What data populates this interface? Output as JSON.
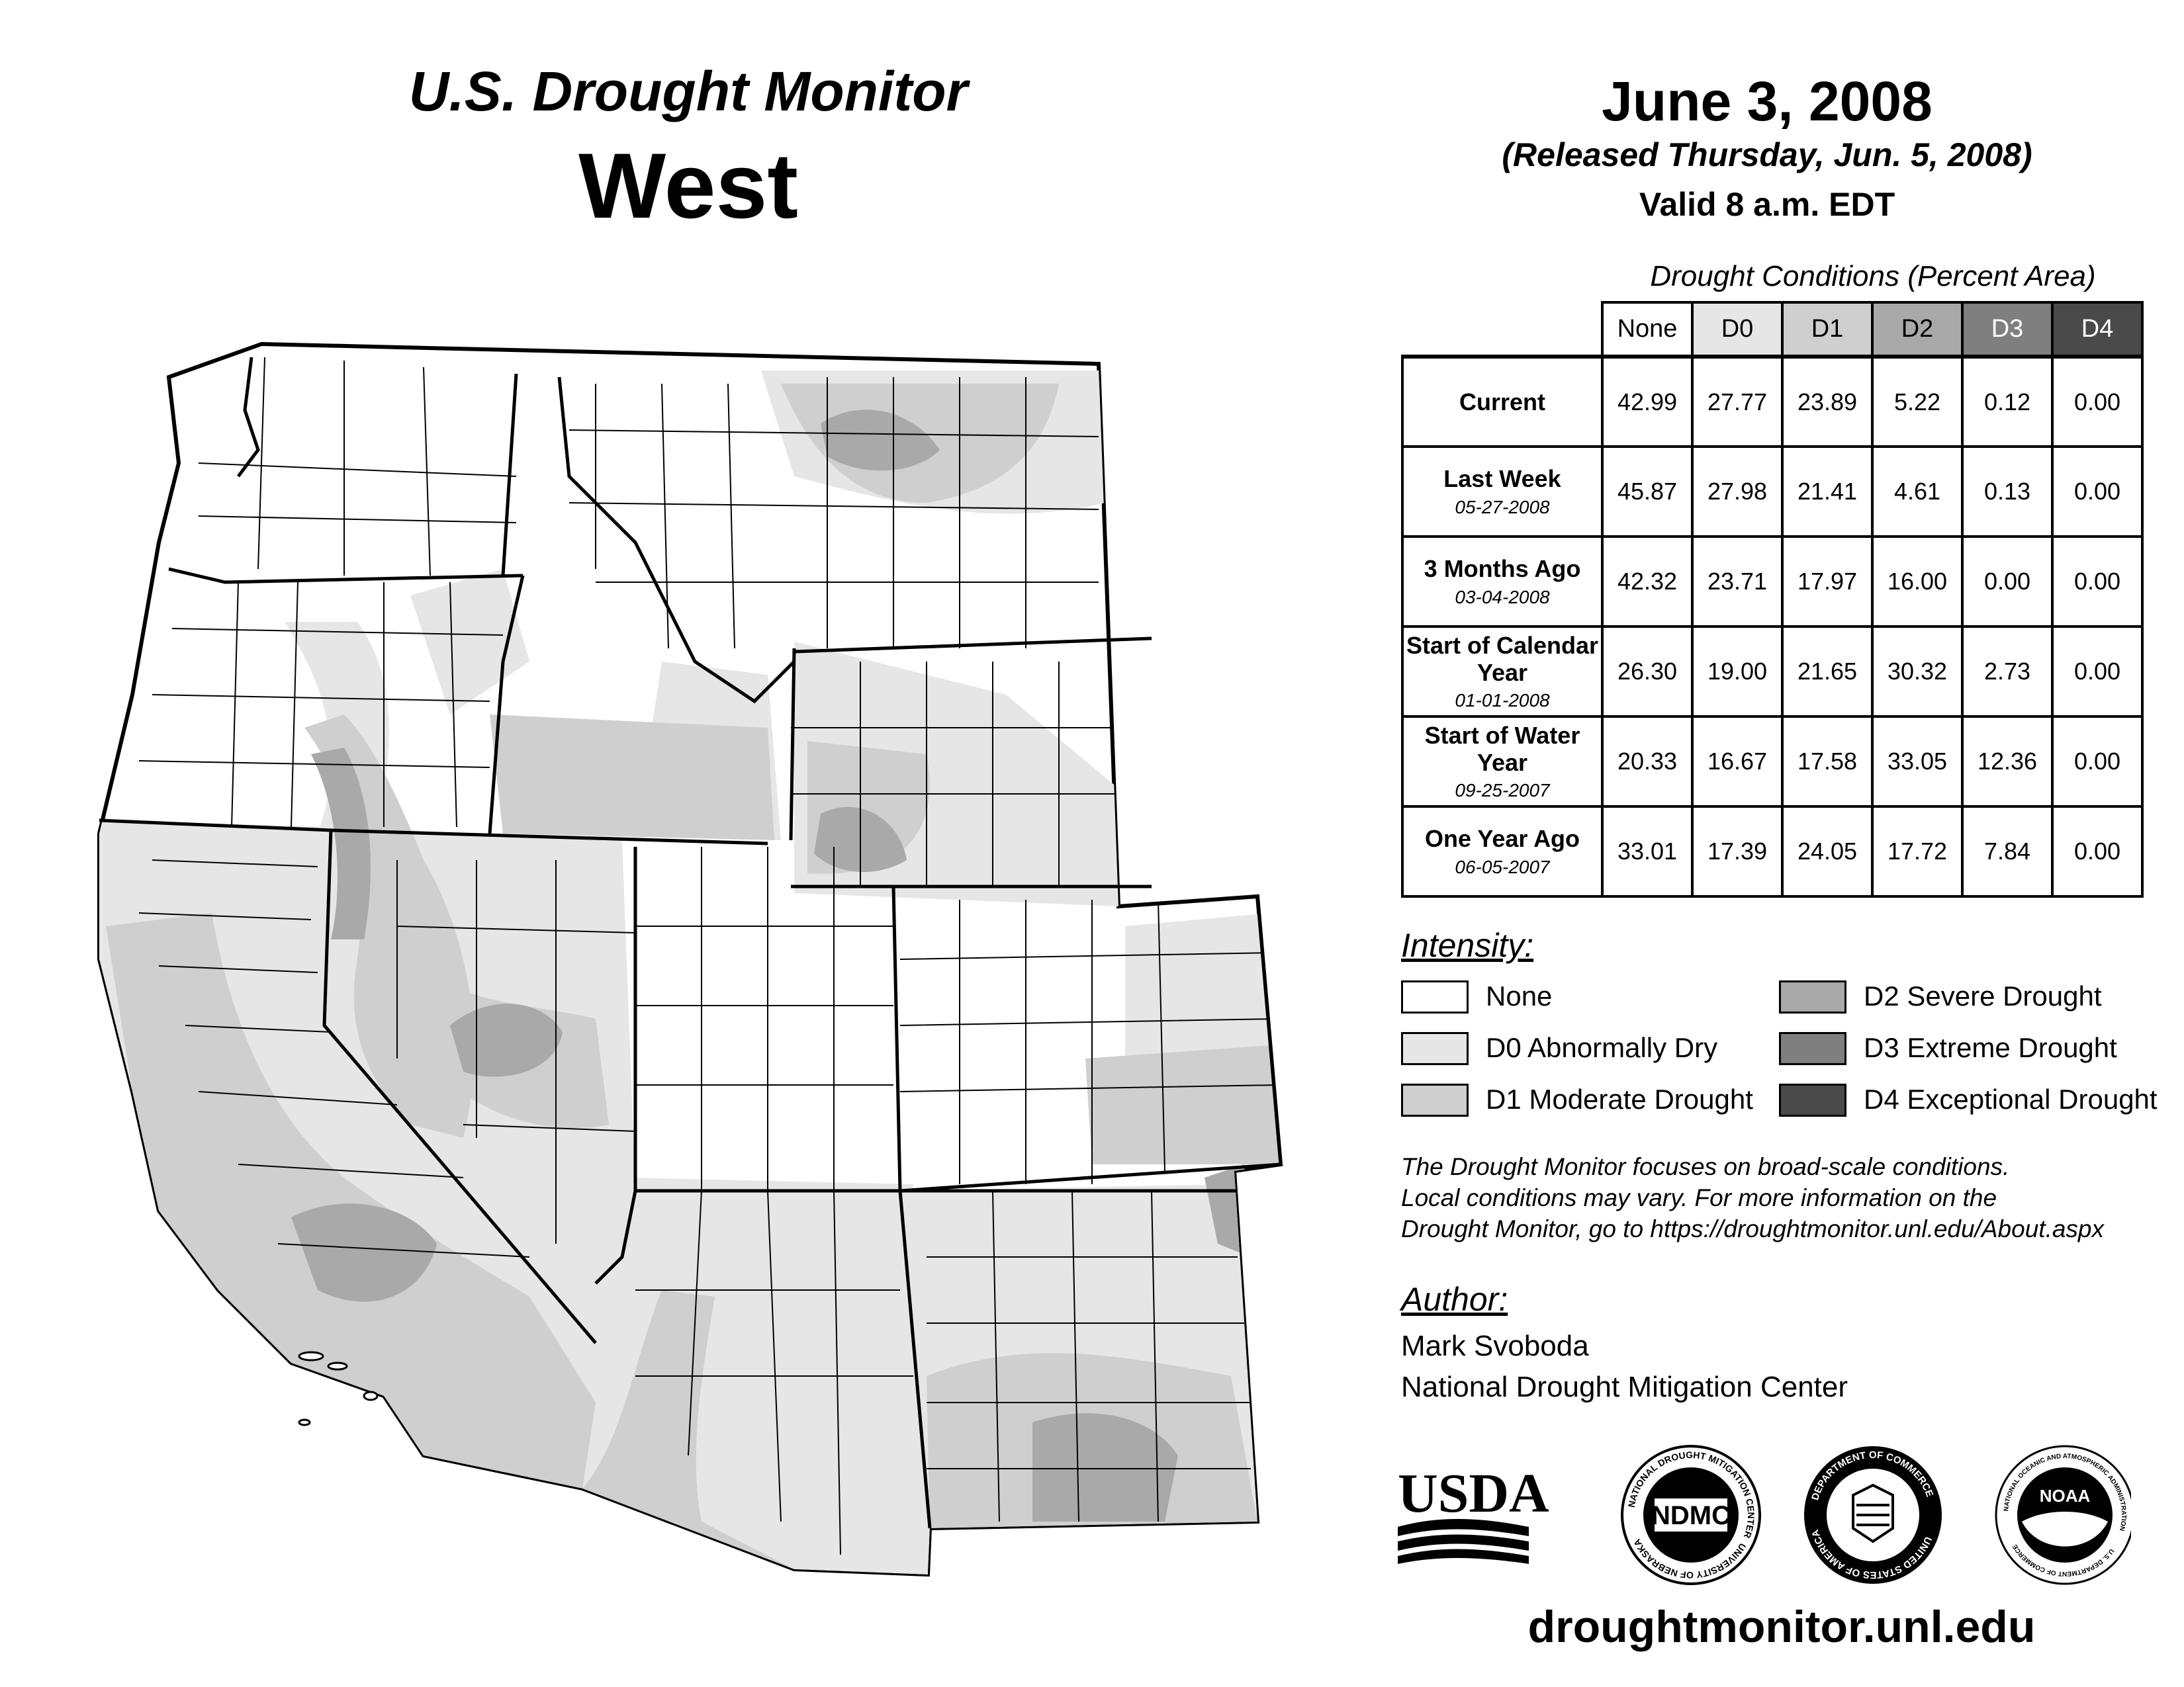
{
  "header": {
    "title": "U.S. Drought Monitor",
    "region": "West",
    "date": "June 3, 2008",
    "released": "(Released Thursday, Jun. 5, 2008)",
    "valid": "Valid 8 a.m. EDT"
  },
  "conditions_table": {
    "caption": "Drought Conditions (Percent Area)",
    "columns": [
      "None",
      "D0",
      "D1",
      "D2",
      "D3",
      "D4"
    ],
    "rows": [
      {
        "label": "Current",
        "date": "",
        "values": [
          "42.99",
          "27.77",
          "23.89",
          "5.22",
          "0.12",
          "0.00"
        ]
      },
      {
        "label": "Last Week",
        "date": "05-27-2008",
        "values": [
          "45.87",
          "27.98",
          "21.41",
          "4.61",
          "0.13",
          "0.00"
        ]
      },
      {
        "label": "3 Months Ago",
        "date": "03-04-2008",
        "values": [
          "42.32",
          "23.71",
          "17.97",
          "16.00",
          "0.00",
          "0.00"
        ]
      },
      {
        "label": "Start of Calendar Year",
        "date": "01-01-2008",
        "values": [
          "26.30",
          "19.00",
          "21.65",
          "30.32",
          "2.73",
          "0.00"
        ]
      },
      {
        "label": "Start of Water Year",
        "date": "09-25-2007",
        "values": [
          "20.33",
          "16.67",
          "17.58",
          "33.05",
          "12.36",
          "0.00"
        ]
      },
      {
        "label": "One Year Ago",
        "date": "06-05-2007",
        "values": [
          "33.01",
          "17.39",
          "24.05",
          "17.72",
          "7.84",
          "0.00"
        ]
      }
    ]
  },
  "legend": {
    "title": "Intensity:",
    "items": [
      {
        "label": "None",
        "color": "#ffffff"
      },
      {
        "label": "D0 Abnormally Dry",
        "color": "#e6e6e6"
      },
      {
        "label": "D1 Moderate Drought",
        "color": "#cfcfcf"
      },
      {
        "label": "D2 Severe Drought",
        "color": "#a9a9a9"
      },
      {
        "label": "D3 Extreme Drought",
        "color": "#7f7f7f"
      },
      {
        "label": "D4 Exceptional Drought",
        "color": "#4a4a4a"
      }
    ]
  },
  "notice": {
    "line1": "The Drought Monitor focuses on broad-scale conditions.",
    "line2": "Local conditions may vary. For more information on the",
    "line3": "Drought Monitor, go to https://droughtmonitor.unl.edu/About.aspx"
  },
  "author": {
    "title": "Author:",
    "name": "Mark Svoboda",
    "org": "National Drought Mitigation Center"
  },
  "logos": {
    "usda": "USDA",
    "ndmc": "NDMC",
    "ndmc_ring_top": "NATIONAL DROUGHT MITIGATION CENTER",
    "ndmc_ring_bottom": "UNIVERSITY OF NEBRASKA",
    "doc_ring_top": "DEPARTMENT OF COMMERCE",
    "doc_ring_bottom": "UNITED STATES OF AMERICA",
    "noaa": "NOAA",
    "noaa_ring_top": "NATIONAL OCEANIC AND ATMOSPHERIC ADMINISTRATION",
    "noaa_ring_bottom": "U.S. DEPARTMENT OF COMMERCE"
  },
  "footer": {
    "url": "droughtmonitor.unl.edu"
  }
}
